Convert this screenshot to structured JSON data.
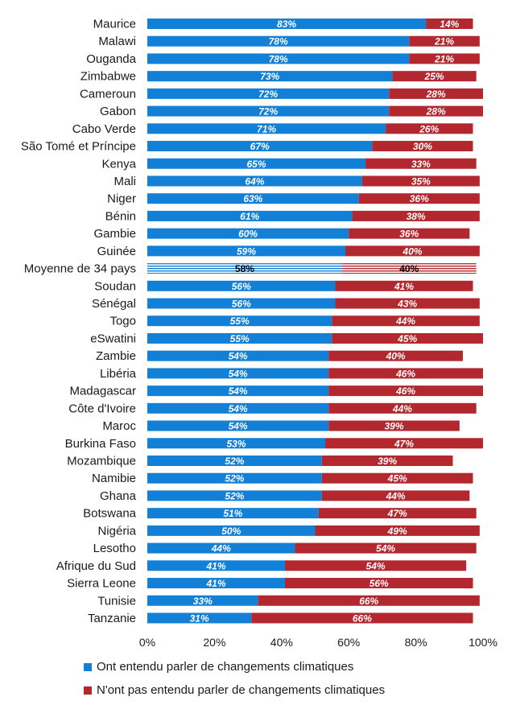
{
  "chart_data": {
    "type": "bar",
    "orientation": "horizontal",
    "stacked": true,
    "categories": [
      "Maurice",
      "Malawi",
      "Ouganda",
      "Zimbabwe",
      "Cameroun",
      "Gabon",
      "Cabo Verde",
      "São Tomé et Príncipe",
      "Kenya",
      "Mali",
      "Niger",
      "Bénin",
      "Gambie",
      "Guinée",
      "Moyenne de 34 pays",
      "Soudan",
      "Sénégal",
      "Togo",
      "eSwatini",
      "Zambie",
      "Libéria",
      "Madagascar",
      "Côte d'Ivoire",
      "Maroc",
      "Burkina Faso",
      "Mozambique",
      "Namibie",
      "Ghana",
      "Botswana",
      "Nigéria",
      "Lesotho",
      "Afrique du Sud",
      "Sierra Leone",
      "Tunisie",
      "Tanzanie"
    ],
    "highlight_category": "Moyenne de 34 pays",
    "series": [
      {
        "name": "Ont entendu parler de changements climatiques",
        "color": "#1380d8",
        "values": [
          83,
          78,
          78,
          73,
          72,
          72,
          71,
          67,
          65,
          64,
          63,
          61,
          60,
          59,
          58,
          56,
          56,
          55,
          55,
          54,
          54,
          54,
          54,
          54,
          53,
          52,
          52,
          52,
          51,
          50,
          44,
          41,
          41,
          33,
          31
        ]
      },
      {
        "name": "N'ont pas entendu parler de changements climatiques",
        "color": "#b3282f",
        "values": [
          14,
          21,
          21,
          25,
          28,
          28,
          26,
          30,
          33,
          35,
          36,
          38,
          36,
          40,
          40,
          41,
          43,
          44,
          45,
          40,
          46,
          46,
          44,
          39,
          47,
          39,
          45,
          44,
          47,
          49,
          54,
          54,
          56,
          66,
          66
        ]
      }
    ],
    "value_labels": {
      "s0": [
        "83%",
        "78%",
        "78%",
        "73%",
        "72%",
        "72%",
        "71%",
        "67%",
        "65%",
        "64%",
        "63%",
        "61%",
        "60%",
        "59%",
        "58%",
        "56%",
        "56%",
        "55%",
        "55%",
        "54%",
        "54%",
        "54%",
        "54%",
        "54%",
        "53%",
        "52%",
        "52%",
        "52%",
        "51%",
        "50%",
        "44%",
        "41%",
        "41%",
        "33%",
        "31%"
      ],
      "s1": [
        "14%",
        "21%",
        "21%",
        "25%",
        "28%",
        "28%",
        "26%",
        "30%",
        "33%",
        "35%",
        "36%",
        "38%",
        "36%",
        "40%",
        "40%",
        "41%",
        "43%",
        "44%",
        "45%",
        "40%",
        "46%",
        "46%",
        "44%",
        "39%",
        "47%",
        "39%",
        "45%",
        "44%",
        "47%",
        "49%",
        "54%",
        "54%",
        "56%",
        "66%",
        "66%"
      ]
    },
    "xlim": [
      0,
      100
    ],
    "xticks": [
      0,
      20,
      40,
      60,
      80,
      100
    ],
    "xtick_labels": [
      "0%",
      "20%",
      "40%",
      "60%",
      "80%",
      "100%"
    ],
    "grid": false,
    "legend_position": "bottom"
  },
  "legend": {
    "item1": "Ont entendu parler de changements climatiques",
    "item2": "N'ont pas entendu parler de changements climatiques"
  }
}
